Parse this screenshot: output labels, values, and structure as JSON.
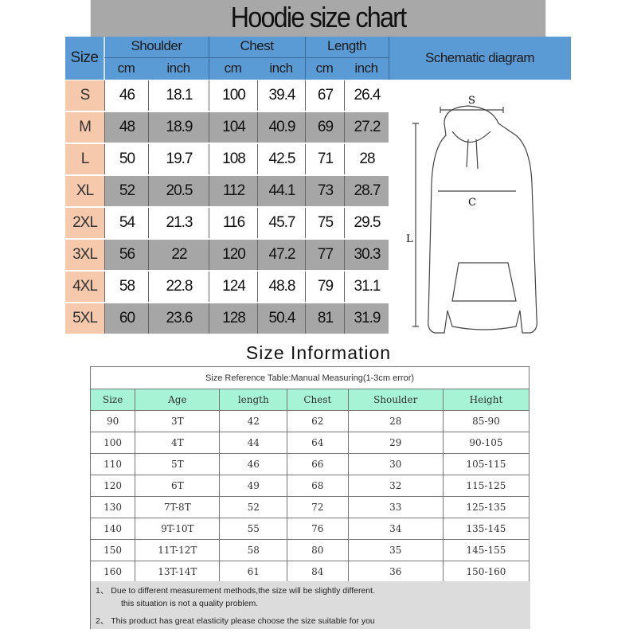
{
  "top": {
    "title": "Hoodie size chart",
    "headers": {
      "size": "Size",
      "shoulder": "Shoulder",
      "chest": "Chest",
      "length": "Length",
      "cm": "cm",
      "inch": "inch",
      "diagram": "Schematic diagram"
    },
    "rows": [
      [
        "S",
        "46",
        "18.1",
        "100",
        "39.4",
        "67",
        "26.4"
      ],
      [
        "M",
        "48",
        "18.9",
        "104",
        "40.9",
        "69",
        "27.2"
      ],
      [
        "L",
        "50",
        "19.7",
        "108",
        "42.5",
        "71",
        "28"
      ],
      [
        "XL",
        "52",
        "20.5",
        "112",
        "44.1",
        "73",
        "28.7"
      ],
      [
        "2XL",
        "54",
        "21.3",
        "116",
        "45.7",
        "75",
        "29.5"
      ],
      [
        "3XL",
        "56",
        "22",
        "120",
        "47.2",
        "77",
        "30.3"
      ],
      [
        "4XL",
        "58",
        "22.8",
        "124",
        "48.8",
        "79",
        "31.1"
      ],
      [
        "5XL",
        "60",
        "23.6",
        "128",
        "50.4",
        "81",
        "31.9"
      ]
    ],
    "diagram_labels": {
      "s": "S",
      "c": "C",
      "l": "L"
    },
    "colors": {
      "title_bg": "#a8a8a8",
      "header_bg": "#5b9bd5",
      "size_bg": "#f6c9ad",
      "alt_row": "#a6a6a6"
    }
  },
  "bottom": {
    "title": "Size Information",
    "caption": "Size Reference Table:Manual Measuring(1-3cm error)",
    "headers": [
      "Size",
      "Age",
      "length",
      "Chest",
      "Shoulder",
      "Height"
    ],
    "rows": [
      [
        "90",
        "3T",
        "42",
        "62",
        "28",
        "85-90"
      ],
      [
        "100",
        "4T",
        "44",
        "64",
        "29",
        "90-105"
      ],
      [
        "110",
        "5T",
        "46",
        "66",
        "30",
        "105-115"
      ],
      [
        "120",
        "6T",
        "49",
        "68",
        "32",
        "115-125"
      ],
      [
        "130",
        "7T-8T",
        "52",
        "72",
        "33",
        "125-135"
      ],
      [
        "140",
        "9T-10T",
        "55",
        "76",
        "34",
        "135-145"
      ],
      [
        "150",
        "11T-12T",
        "58",
        "80",
        "35",
        "145-155"
      ],
      [
        "160",
        "13T-14T",
        "61",
        "84",
        "36",
        "150-160"
      ]
    ],
    "notes": [
      "1、 Due to different measurement methods,the size will be slightly different.",
      "this situation is not a quality problem.",
      "2、 This product has great elasticity please choose the size suitable for you"
    ],
    "colors": {
      "header_bg": "#a7f3d6",
      "notes_bg": "#dcdcdc"
    }
  }
}
